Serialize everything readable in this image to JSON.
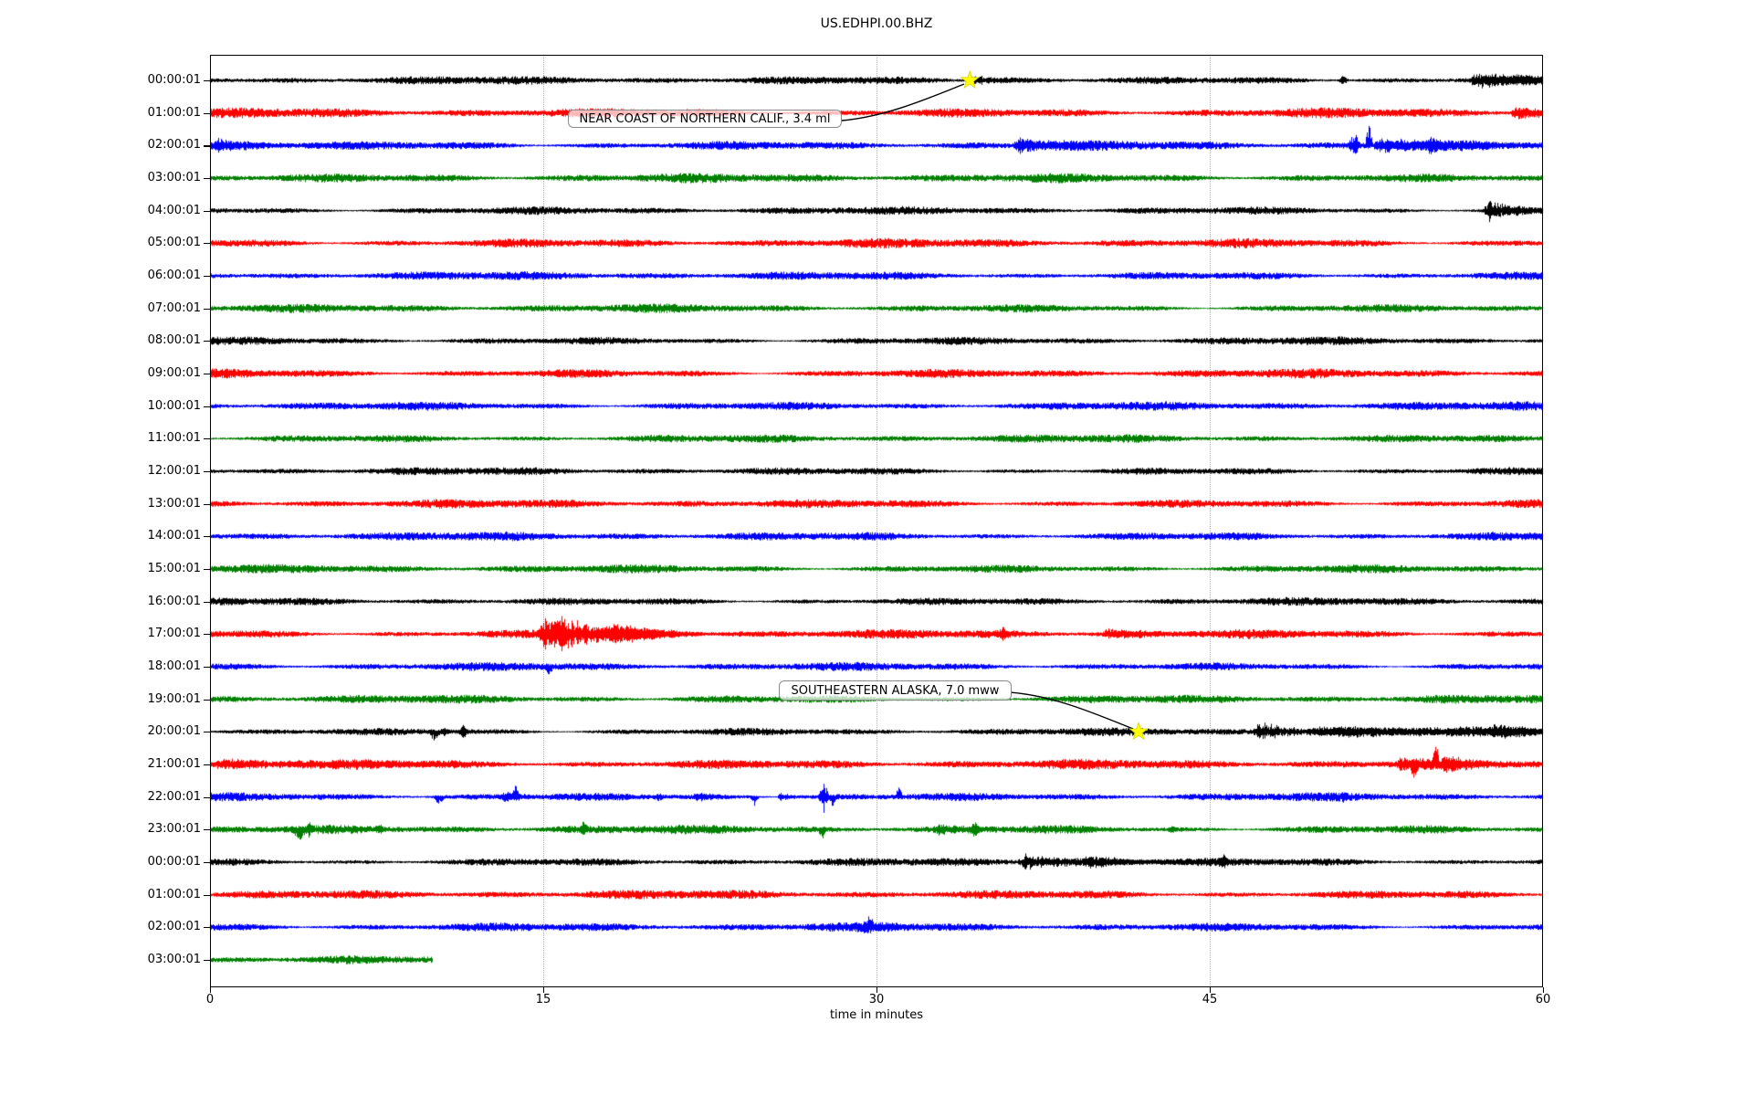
{
  "figure": {
    "title": "US.EDHPI.00.BHZ"
  },
  "chart_data": {
    "type": "line",
    "subtype": "seismogram-helicorder-dayplot",
    "title": "US.EDHPI.00.BHZ",
    "xlabel": "time in minutes",
    "x_range": [
      0,
      60
    ],
    "x_ticks": [
      0,
      15,
      30,
      45,
      60
    ],
    "x_tick_labels": [
      "0",
      "15",
      "30",
      "45",
      "60"
    ],
    "grid": {
      "vertical_at": [
        15,
        30,
        45
      ],
      "style": "dotted"
    },
    "colors_cycle": [
      "#000000",
      "#ff0000",
      "#0000ff",
      "#008000"
    ],
    "marker_color": "#ffff00",
    "annotation_events": [
      {
        "label": "NEAR COAST OF NORTHERN CALIF., 3.4 ml",
        "row": 0,
        "row_time": "00:00:01",
        "minute": 34.2,
        "marker": "yellow-star"
      },
      {
        "label": "SOUTHEASTERN ALASKA, 7.0 mww",
        "row": 20,
        "row_time": "20:00:01",
        "minute": 41.8,
        "marker": "yellow-star"
      }
    ],
    "rows": [
      {
        "label": "00:00:01",
        "color": "#000000",
        "amp": 3.0,
        "events": [
          {
            "t": 34.1,
            "dur": 2.0,
            "amp": 4.5,
            "type": "burst"
          },
          {
            "t": 51.0,
            "dur": 0.4,
            "amp": 6,
            "type": "spike"
          },
          {
            "t": 56.8,
            "dur": 1.8,
            "amp": 9,
            "type": "burst"
          }
        ]
      },
      {
        "label": "01:00:01",
        "color": "#ff0000",
        "amp": 3.6,
        "events": [
          {
            "t": 58.6,
            "dur": 1.4,
            "amp": 8,
            "type": "burst"
          }
        ]
      },
      {
        "label": "02:00:01",
        "color": "#0000ff",
        "amp": 3.4,
        "events": [
          {
            "t": 0,
            "dur": 2.2,
            "amp": 7,
            "type": "burst"
          },
          {
            "t": 36.2,
            "dur": 1.6,
            "amp": 8,
            "type": "burst"
          },
          {
            "t": 51.5,
            "dur": 0.5,
            "amp": 13,
            "type": "spike"
          },
          {
            "t": 52.15,
            "dur": 0.28,
            "amp": 25,
            "type": "spike",
            "dir": "up"
          },
          {
            "t": 52.4,
            "dur": 2.6,
            "amp": 7,
            "type": "burst"
          },
          {
            "t": 55.0,
            "dur": 0.4,
            "amp": 8,
            "type": "spike"
          }
        ]
      },
      {
        "label": "03:00:01",
        "color": "#008000",
        "amp": 3.4,
        "events": []
      },
      {
        "label": "04:00:01",
        "color": "#000000",
        "amp": 2.9,
        "events": [
          {
            "t": 57.4,
            "dur": 1.2,
            "amp": 13,
            "type": "burst"
          }
        ]
      },
      {
        "label": "05:00:01",
        "color": "#ff0000",
        "amp": 3.4,
        "events": []
      },
      {
        "label": "06:00:01",
        "color": "#0000ff",
        "amp": 3.1,
        "events": []
      },
      {
        "label": "07:00:01",
        "color": "#008000",
        "amp": 3.1,
        "events": []
      },
      {
        "label": "08:00:01",
        "color": "#000000",
        "amp": 2.9,
        "events": []
      },
      {
        "label": "09:00:01",
        "color": "#ff0000",
        "amp": 3.3,
        "events": []
      },
      {
        "label": "10:00:01",
        "color": "#0000ff",
        "amp": 3.2,
        "events": []
      },
      {
        "label": "11:00:01",
        "color": "#008000",
        "amp": 3.0,
        "events": []
      },
      {
        "label": "12:00:01",
        "color": "#000000",
        "amp": 2.8,
        "events": []
      },
      {
        "label": "13:00:01",
        "color": "#ff0000",
        "amp": 3.2,
        "events": []
      },
      {
        "label": "14:00:01",
        "color": "#0000ff",
        "amp": 3.2,
        "events": []
      },
      {
        "label": "15:00:01",
        "color": "#008000",
        "amp": 3.1,
        "events": []
      },
      {
        "label": "16:00:01",
        "color": "#000000",
        "amp": 2.9,
        "events": []
      },
      {
        "label": "17:00:01",
        "color": "#ff0000",
        "amp": 3.3,
        "events": [
          {
            "t": 14.8,
            "dur": 2.8,
            "amp": 23,
            "type": "burst"
          },
          {
            "t": 18.0,
            "dur": 2.2,
            "amp": 5,
            "type": "burst"
          },
          {
            "t": 35.7,
            "dur": 0.5,
            "amp": 5,
            "type": "spike"
          },
          {
            "t": 40.3,
            "dur": 1.4,
            "amp": 5,
            "type": "burst"
          }
        ]
      },
      {
        "label": "18:00:01",
        "color": "#0000ff",
        "amp": 3.0,
        "events": [
          {
            "t": 15.25,
            "dur": 0.3,
            "amp": 7,
            "type": "spike",
            "dir": "down"
          }
        ]
      },
      {
        "label": "19:00:01",
        "color": "#008000",
        "amp": 3.2,
        "events": []
      },
      {
        "label": "20:00:01",
        "color": "#000000",
        "amp": 2.8,
        "events": [
          {
            "t": 10.1,
            "dur": 0.5,
            "amp": 8,
            "type": "spike",
            "dir": "down"
          },
          {
            "t": 10.55,
            "dur": 0.3,
            "amp": 5,
            "type": "spike"
          },
          {
            "t": 11.4,
            "dur": 0.5,
            "amp": 6,
            "type": "spike"
          },
          {
            "t": 47.0,
            "dur": 2.2,
            "amp": 10,
            "type": "burst"
          },
          {
            "t": 49.3,
            "dur": 9.0,
            "amp": 4,
            "type": "burst"
          },
          {
            "t": 57.7,
            "dur": 2.0,
            "amp": 6,
            "type": "burst"
          }
        ]
      },
      {
        "label": "21:00:01",
        "color": "#ff0000",
        "amp": 3.5,
        "events": [
          {
            "t": 0,
            "dur": 6.5,
            "amp": 4.5,
            "type": "burst"
          },
          {
            "t": 53.5,
            "dur": 1.1,
            "amp": 6,
            "type": "burst"
          },
          {
            "t": 54.2,
            "dur": 0.4,
            "amp": 9,
            "type": "spike",
            "dir": "down"
          },
          {
            "t": 55.15,
            "dur": 0.25,
            "amp": 27,
            "type": "spike",
            "dir": "up"
          },
          {
            "t": 55.5,
            "dur": 0.9,
            "amp": 7,
            "type": "burst"
          }
        ]
      },
      {
        "label": "22:00:01",
        "color": "#0000ff",
        "amp": 3.0,
        "events": [
          {
            "t": 10.3,
            "dur": 0.5,
            "amp": 8,
            "type": "spike",
            "dir": "down"
          },
          {
            "t": 13.2,
            "dur": 0.7,
            "amp": 5,
            "type": "burst"
          },
          {
            "t": 13.75,
            "dur": 0.3,
            "amp": 11,
            "type": "spike",
            "dir": "up"
          },
          {
            "t": 20.2,
            "dur": 0.4,
            "amp": 4,
            "type": "spike"
          },
          {
            "t": 21.8,
            "dur": 0.8,
            "amp": 4,
            "type": "burst"
          },
          {
            "t": 24.5,
            "dur": 0.35,
            "amp": 8,
            "type": "spike",
            "dir": "down"
          },
          {
            "t": 25.6,
            "dur": 0.8,
            "amp": 4,
            "type": "burst"
          },
          {
            "t": 27.6,
            "dur": 0.4,
            "amp": 17,
            "type": "spike"
          },
          {
            "t": 28.0,
            "dur": 0.3,
            "amp": 8,
            "type": "spike",
            "dir": "down"
          },
          {
            "t": 31.0,
            "dur": 0.25,
            "amp": 11,
            "type": "spike",
            "dir": "up"
          },
          {
            "t": 51.0,
            "dur": 0.3,
            "amp": 4,
            "type": "spike"
          }
        ]
      },
      {
        "label": "23:00:01",
        "color": "#008000",
        "amp": 3.2,
        "events": [
          {
            "t": 4.0,
            "dur": 0.6,
            "amp": 11,
            "type": "spike",
            "dir": "down"
          },
          {
            "t": 4.45,
            "dur": 0.3,
            "amp": 6,
            "type": "spike"
          },
          {
            "t": 7.6,
            "dur": 0.4,
            "amp": 4,
            "type": "spike"
          },
          {
            "t": 16.8,
            "dur": 0.3,
            "amp": 7,
            "type": "spike"
          },
          {
            "t": 27.55,
            "dur": 0.3,
            "amp": 9,
            "type": "spike",
            "dir": "down"
          },
          {
            "t": 32.7,
            "dur": 0.6,
            "amp": 4,
            "type": "burst"
          },
          {
            "t": 34.4,
            "dur": 0.4,
            "amp": 8,
            "type": "spike"
          },
          {
            "t": 43.3,
            "dur": 0.4,
            "amp": 4,
            "type": "spike"
          }
        ]
      },
      {
        "label": "00:00:01",
        "color": "#000000",
        "amp": 2.9,
        "events": [
          {
            "t": 36.4,
            "dur": 2.6,
            "amp": 8,
            "type": "burst"
          },
          {
            "t": 39.3,
            "dur": 2.4,
            "amp": 4.5,
            "type": "burst"
          },
          {
            "t": 45.6,
            "dur": 0.5,
            "amp": 4.5,
            "type": "spike"
          }
        ]
      },
      {
        "label": "01:00:01",
        "color": "#ff0000",
        "amp": 3.3,
        "events": []
      },
      {
        "label": "02:00:01",
        "color": "#0000ff",
        "amp": 3.2,
        "events": [
          {
            "t": 29.4,
            "dur": 0.9,
            "amp": 4.5,
            "type": "burst"
          },
          {
            "t": 29.7,
            "dur": 0.25,
            "amp": 9,
            "type": "spike",
            "dir": "up"
          }
        ]
      },
      {
        "label": "03:00:01",
        "color": "#008000",
        "amp": 3.4,
        "end_min": 10,
        "events": []
      }
    ]
  }
}
